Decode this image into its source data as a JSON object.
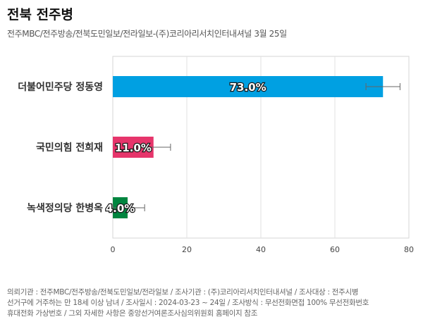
{
  "header": {
    "title": "전북 전주병",
    "subtitle": "전주MBC/전주방송/전북도민일보/전라일보-(주)코리아리서치인터내셔널 3월 25일"
  },
  "chart_data": {
    "type": "bar",
    "orientation": "horizontal",
    "categories": [
      "더불어민주당 정동영",
      "국민의힘 전희재",
      "녹색정의당 한병옥"
    ],
    "values": [
      73.0,
      11.0,
      4.0
    ],
    "value_labels": [
      "73.0%",
      "11.0%",
      "4.0%"
    ],
    "error_bars": [
      [
        68.4,
        77.6
      ],
      [
        6.4,
        15.6
      ],
      [
        0,
        8.6
      ]
    ],
    "colors": [
      "#00a0e2",
      "#e6356b",
      "#00853f"
    ],
    "xlim": [
      0,
      80
    ],
    "xticks": [
      0,
      20,
      40,
      60,
      80
    ],
    "grid": true
  },
  "footer": {
    "lines": [
      "의뢰기관 : 전주MBC/전주방송/전북도민일보/전라일보 / 조사기관 : (주)코리아리서치인터내셔널 / 조사대상 : 전주시병",
      "선거구에 거주하는 만 18세 이상 남녀 / 조사일시 : 2024-03-23 ~ 24일 / 조사방식 : 무선전화면접 100% 무선전화번호",
      "휴대전화 가상번호 / 그외 자세한 사항은 중앙선거여론조사심의위원회 홈페이지 참조"
    ]
  }
}
